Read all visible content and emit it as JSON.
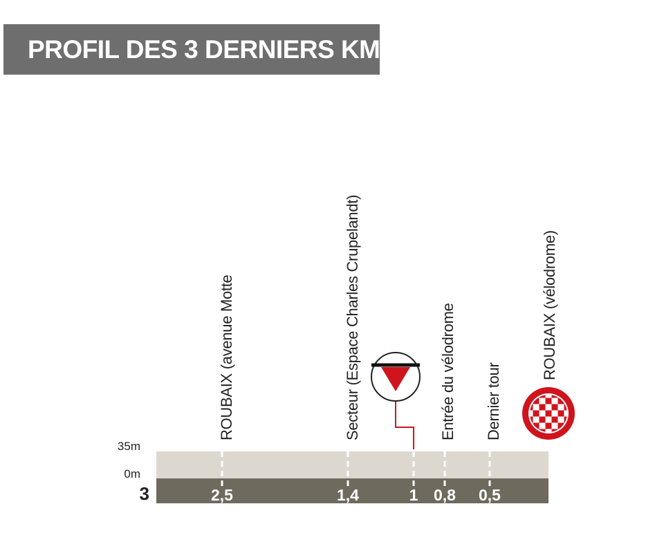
{
  "title": "PROFIL DES 3 DERNIERS KM",
  "altitude_labels": [
    "35m",
    "0m"
  ],
  "distance_labels": [
    "3",
    "2,5",
    "1,4",
    "1",
    "0,8",
    "0,5"
  ],
  "places": [
    "ROUBAIX (avenue Motte",
    "Secteur (Espace Charles Crupelandt)",
    "Entrée du vélodrome",
    "Dernier tour",
    "ROUBAIX (vélodrome)"
  ]
}
